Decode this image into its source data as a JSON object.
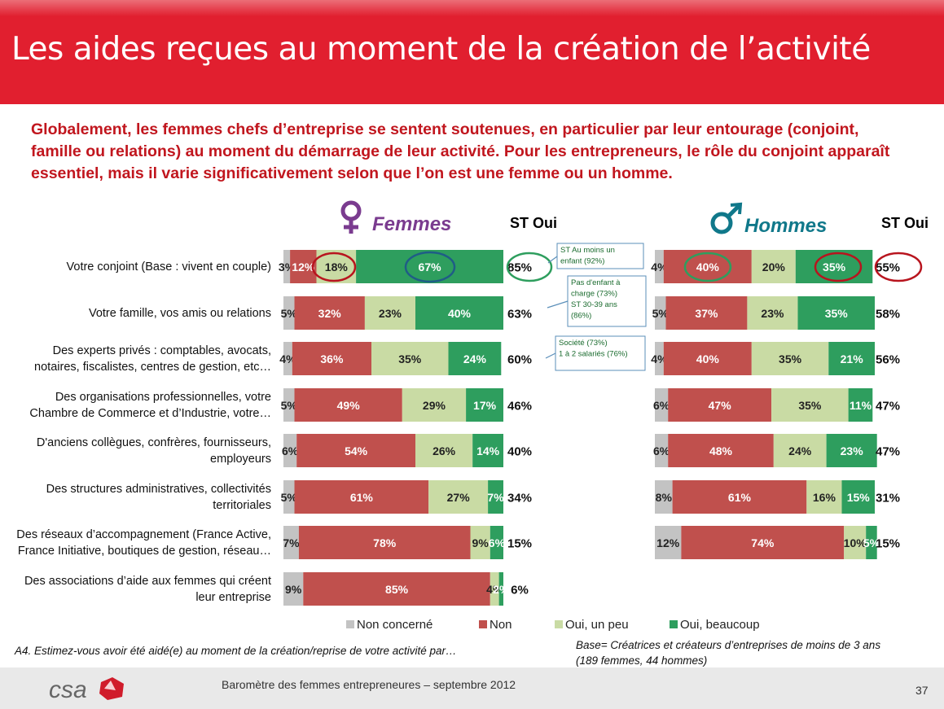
{
  "title": "Les aides reçues au moment de la création de l’activité",
  "intro": "Globalement, les femmes chefs d’entreprise se sentent soutenues, en particulier par leur entourage (conjoint, famille ou relations) au moment du démarrage de leur activité. Pour les entrepreneurs, le rôle du conjoint apparaît essentiel, mais il varie significativement selon que l’on est une femme ou un homme.",
  "colors": {
    "non_concerne": "#c3c3c3",
    "non": "#c0504d",
    "oui_peu": "#c9dba4",
    "oui_beaucoup": "#2e9e5e",
    "title_bg": "#e11f2f",
    "women": "#7a3b8f",
    "men": "#10788a"
  },
  "chart_data": {
    "type": "bar",
    "orientation": "horizontal",
    "stacked": true,
    "categories": [
      "Votre conjoint (Base : vivent en couple)",
      "Votre famille, vos amis ou relations",
      "Des experts privés : comptables, avocats, notaires, fiscalistes, centres de gestion, etc…",
      "Des organisations professionnelles, votre Chambre de Commerce et d’Industrie, votre…",
      "D'anciens collègues, confrères, fournisseurs, employeurs",
      "Des structures administratives, collectivités territoriales",
      "Des réseaux d’accompagnement (France Active, France Initiative, boutiques de gestion, réseau…",
      "Des associations d’aide aux femmes qui créent leur entreprise"
    ],
    "category_lines": [
      [
        "Votre conjoint (Base : vivent en couple)"
      ],
      [
        "Votre famille, vos amis ou relations"
      ],
      [
        "Des experts privés : comptables, avocats,",
        "notaires, fiscalistes, centres de gestion, etc…"
      ],
      [
        "Des organisations professionnelles, votre",
        "Chambre de Commerce et d’Industrie, votre…"
      ],
      [
        "D'anciens collègues, confrères, fournisseurs,",
        "employeurs"
      ],
      [
        "Des structures administratives, collectivités",
        "territoriales"
      ],
      [
        "Des réseaux d’accompagnement (France Active,",
        "France Initiative, boutiques de gestion, réseau…"
      ],
      [
        "Des associations d’aide  aux femmes qui créent",
        "leur entreprise"
      ]
    ],
    "legend": [
      "Non concerné",
      "Non",
      "Oui, un peu",
      "Oui, beaucoup"
    ],
    "st_label": "ST Oui",
    "panels": [
      {
        "name": "Femmes",
        "series": [
          {
            "name": "Non concerné",
            "values": [
              3,
              5,
              4,
              5,
              6,
              5,
              7,
              9
            ]
          },
          {
            "name": "Non",
            "values": [
              12,
              32,
              36,
              49,
              54,
              61,
              78,
              85
            ]
          },
          {
            "name": "Oui, un peu",
            "values": [
              18,
              23,
              35,
              29,
              26,
              27,
              9,
              4
            ]
          },
          {
            "name": "Oui, beaucoup",
            "values": [
              67,
              40,
              24,
              17,
              14,
              7,
              6,
              2
            ]
          }
        ],
        "st_oui": [
          "85%",
          "63%",
          "60%",
          "46%",
          "40%",
          "34%",
          "15%",
          "6%"
        ]
      },
      {
        "name": "Hommes",
        "series": [
          {
            "name": "Non concerné",
            "values": [
              4,
              5,
              4,
              6,
              6,
              8,
              12
            ]
          },
          {
            "name": "Non",
            "values": [
              40,
              37,
              40,
              47,
              48,
              61,
              74
            ]
          },
          {
            "name": "Oui, un peu",
            "values": [
              20,
              23,
              35,
              35,
              24,
              16,
              10
            ]
          },
          {
            "name": "Oui, beaucoup",
            "values": [
              35,
              35,
              21,
              11,
              23,
              15,
              5
            ]
          }
        ],
        "st_oui": [
          "55%",
          "58%",
          "56%",
          "47%",
          "47%",
          "31%",
          "15%"
        ]
      }
    ],
    "annotations": [
      {
        "row": 0,
        "lines": [
          "ST Au moins un",
          "enfant (92%)"
        ]
      },
      {
        "row": 1,
        "lines": [
          "Pas d'enfant à",
          "charge (73%)",
          "ST 30-39 ans",
          "(86%)"
        ]
      },
      {
        "row": 2,
        "lines": [
          "Société (73%)",
          "1 à 2 salariés (76%)"
        ]
      }
    ]
  },
  "question": "A4. Estimez-vous avoir été aidé(e) au moment de la création/reprise de votre activité par…",
  "base_line1": "Base= Créatrices et créateurs d’entreprises de moins de 3 ans",
  "base_line2": "(189 femmes, 44 hommes)",
  "footer": "Baromètre des femmes entrepreneures –  septembre 2012",
  "page_number": "37",
  "logo_text": "csa"
}
